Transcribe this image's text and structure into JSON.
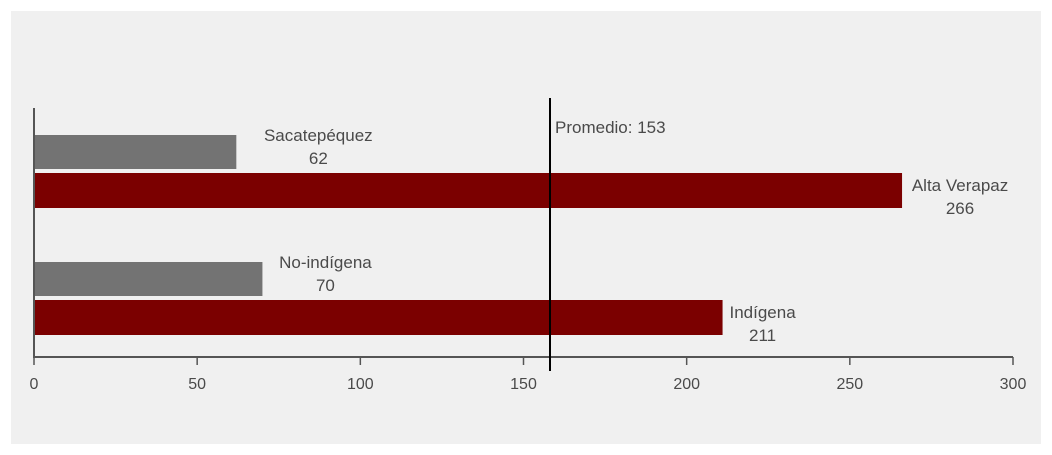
{
  "chart_data": {
    "type": "bar",
    "orientation": "horizontal",
    "xlim": [
      0,
      300
    ],
    "x_ticks": [
      0,
      50,
      100,
      150,
      200,
      250,
      300
    ],
    "groups": [
      {
        "bars": [
          {
            "label": "Sacatepéquez",
            "value": 62,
            "value_label": "62",
            "color": "#737373"
          },
          {
            "label": "Alta Verapaz",
            "value": 266,
            "value_label": "266",
            "color": "#7b0000"
          }
        ]
      },
      {
        "bars": [
          {
            "label": "No-indígena",
            "value": 70,
            "value_label": "70",
            "color": "#737373"
          },
          {
            "label": "Indígena",
            "value": 211,
            "value_label": "211",
            "color": "#7b0000"
          }
        ]
      }
    ],
    "reference_line": {
      "label": "Promedio: 153",
      "value": 153
    },
    "grid": false,
    "legend": "none"
  }
}
